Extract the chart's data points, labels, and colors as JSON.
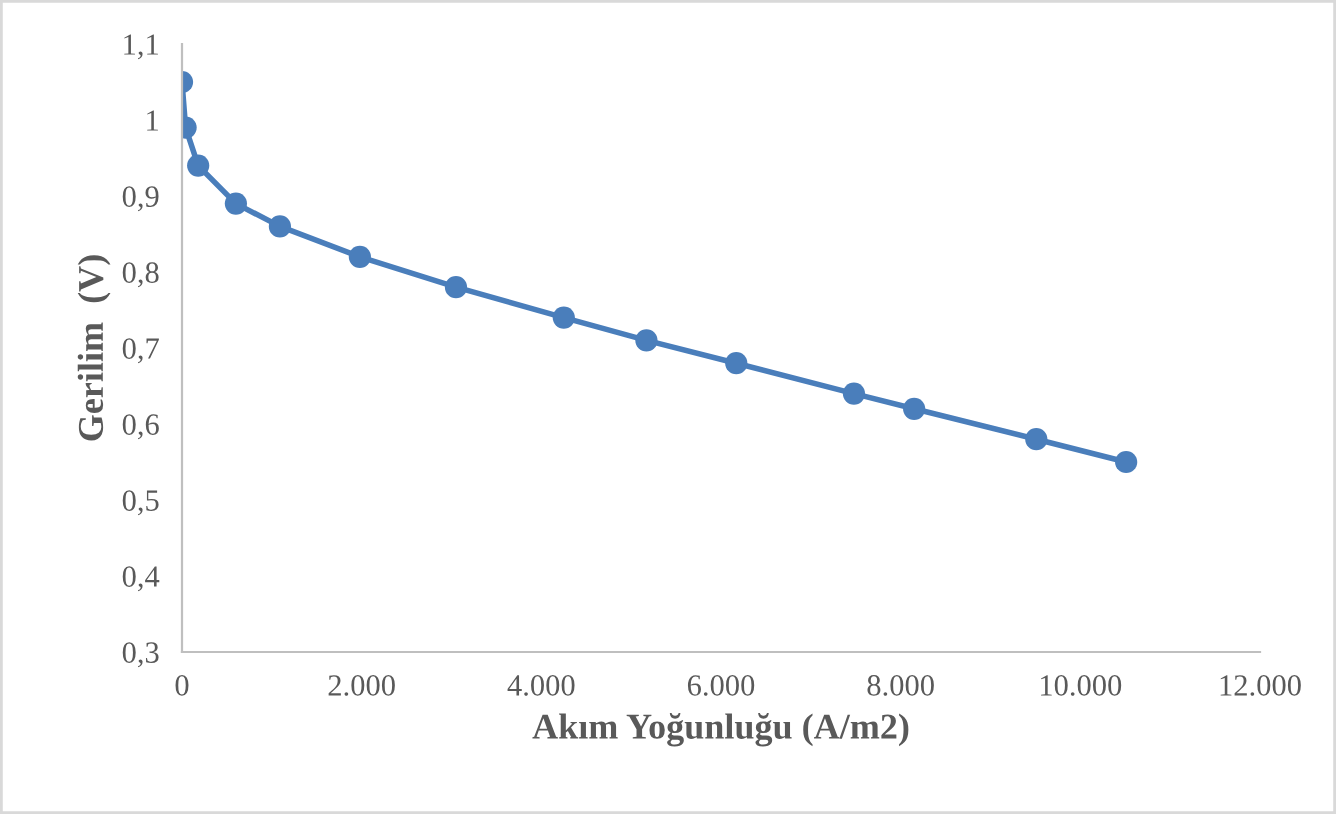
{
  "chart_data": {
    "type": "line",
    "xlabel": "Akım Yoğunluğu (A/m2)",
    "ylabel": "Gerilim  (V)",
    "x": [
      0,
      40,
      180,
      600,
      1090,
      1980,
      3050,
      4250,
      5170,
      6170,
      7480,
      8150,
      9510,
      10510
    ],
    "series": [
      {
        "color": "#4a7ebb",
        "values": [
          1.05,
          0.99,
          0.94,
          0.89,
          0.86,
          0.82,
          0.78,
          0.74,
          0.71,
          0.68,
          0.64,
          0.62,
          0.58,
          0.55
        ]
      }
    ],
    "xlim": [
      0,
      12000
    ],
    "xticks": [
      0,
      {
        "value": 2000,
        "label": "2.000"
      },
      {
        "value": 4000,
        "label": "4.000"
      },
      {
        "value": 6000,
        "label": "6.000"
      },
      {
        "value": 8000,
        "label": "8.000"
      },
      {
        "value": 10000,
        "label": "10.000"
      },
      {
        "value": 12000,
        "label": "12.000"
      }
    ],
    "ylim": [
      0.3,
      1.1
    ],
    "yticks": [
      {
        "value": 0.3,
        "label": "0,3"
      },
      {
        "value": 0.4,
        "label": "0,4"
      },
      {
        "value": 0.5,
        "label": "0,5"
      },
      {
        "value": 0.6,
        "label": "0,6"
      },
      {
        "value": 0.7,
        "label": "0,7"
      },
      {
        "value": 0.8,
        "label": "0,8"
      },
      {
        "value": 0.9,
        "label": "0,9"
      },
      {
        "value": 1,
        "label": "1"
      },
      {
        "value": 1.1,
        "label": "1,1"
      }
    ],
    "marker": "circle",
    "line_style": "solid",
    "grid": false,
    "legend": false
  }
}
